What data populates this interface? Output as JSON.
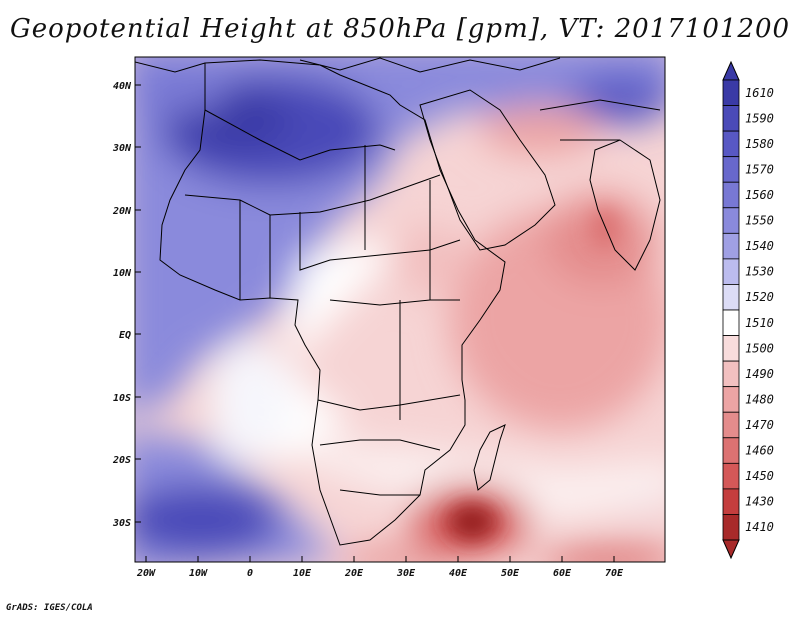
{
  "title": "Geopotential Height at 850hPa [gpm], VT: 2017101200",
  "credit": "GrADS: IGES/COLA",
  "map": {
    "lat_labels": [
      "40N",
      "30N",
      "20N",
      "10N",
      "EQ",
      "10S",
      "20S",
      "30S"
    ],
    "lon_labels": [
      "20W",
      "10W",
      "0",
      "10E",
      "20E",
      "30E",
      "40E",
      "50E",
      "60E",
      "70E"
    ]
  },
  "colorbar": {
    "levels": [
      "1610",
      "1590",
      "1580",
      "1570",
      "1560",
      "1550",
      "1540",
      "1530",
      "1520",
      "1510",
      "1500",
      "1490",
      "1480",
      "1470",
      "1460",
      "1450",
      "1430",
      "1410"
    ],
    "colors": [
      "#3a3aa6",
      "#4a4ab8",
      "#5858c4",
      "#6868cc",
      "#7878d4",
      "#8a8adc",
      "#a0a0e4",
      "#bcbcee",
      "#dcdcf6",
      "#ffffff",
      "#f8dcdc",
      "#f2c0c0",
      "#eca4a4",
      "#e48c8c",
      "#dc7272",
      "#d45858",
      "#c43e3e",
      "#a82a2a"
    ]
  }
}
